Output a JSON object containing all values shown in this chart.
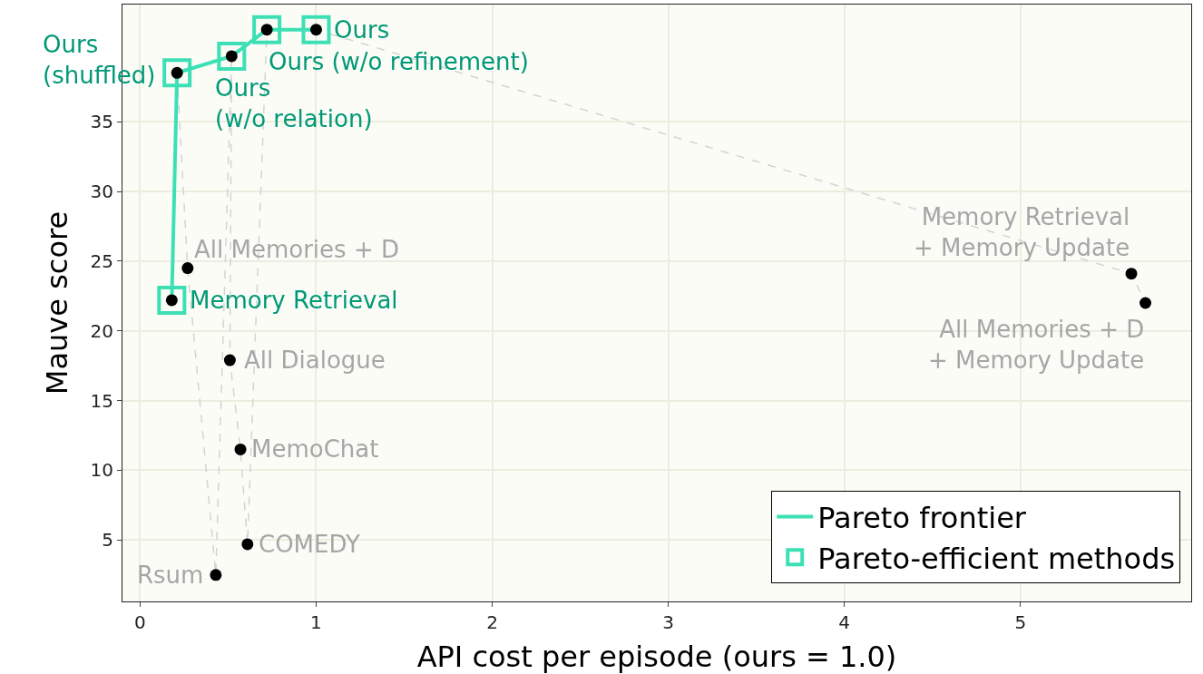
{
  "chart_data": {
    "type": "scatter",
    "xlabel": "API cost per episode (ours = 1.0)",
    "ylabel": "Mauve score",
    "xlim": [
      -0.1,
      5.97
    ],
    "xticks": [
      0,
      1,
      2,
      3,
      4,
      5
    ],
    "ylim": [
      0.6,
      43.4
    ],
    "yticks": [
      5,
      10,
      15,
      20,
      25,
      30,
      35
    ],
    "grid": true,
    "legend": "bottom right",
    "series": [
      {
        "type": "line",
        "line_style": "dashed",
        "color": "#d3d3d3",
        "x": [
          0.21,
          0.27,
          0.43,
          0.52,
          0.51,
          0.57,
          0.61,
          0.72,
          1.0,
          5.63,
          5.71
        ],
        "values": [
          38.5,
          24.5,
          2.5,
          39.7,
          17.9,
          11.5,
          4.7,
          41.6,
          41.6,
          24.1,
          22.0
        ]
      },
      {
        "type": "line",
        "name": "Pareto frontier",
        "color": "#3de0b5",
        "x": [
          0.18,
          0.21,
          0.52,
          0.72,
          1.0
        ],
        "values": [
          22.2,
          38.5,
          39.7,
          41.6,
          41.6
        ]
      },
      {
        "name": "Pareto-efficient methods",
        "marker": "square",
        "color": "#3de0b5",
        "x": [
          0.18,
          0.21,
          0.52,
          0.72,
          1.0
        ],
        "values": [
          22.2,
          38.5,
          39.7,
          41.6,
          41.6
        ]
      },
      {
        "marker": "circle",
        "color": "#000000",
        "x": [
          1.0,
          0.72,
          0.52,
          0.21,
          0.18,
          0.27,
          0.51,
          0.57,
          0.61,
          0.43,
          5.63,
          5.71
        ],
        "values": [
          41.6,
          41.6,
          39.7,
          38.5,
          22.2,
          24.5,
          17.9,
          11.5,
          4.7,
          2.5,
          24.1,
          22.0
        ]
      }
    ],
    "annotations": [
      {
        "text": "Ours",
        "x": 1.0,
        "y": 41.6
      },
      {
        "text": "Ours (w/o refinement)",
        "x": 0.72,
        "y": 41.6
      },
      {
        "text": "Ours\n(w/o relation)",
        "x": 0.52,
        "y": 39.7
      },
      {
        "text": "Ours\n(shuffled)",
        "x": 0.21,
        "y": 38.5
      },
      {
        "text": "Memory Retrieval",
        "x": 0.18,
        "y": 22.2
      },
      {
        "text": "All Memories + D",
        "x": 0.27,
        "y": 24.5
      },
      {
        "text": "All Dialogue",
        "x": 0.51,
        "y": 17.9
      },
      {
        "text": "MemoChat",
        "x": 0.57,
        "y": 11.5
      },
      {
        "text": "COMEDY",
        "x": 0.61,
        "y": 4.7
      },
      {
        "text": "Rsum",
        "x": 0.43,
        "y": 2.5
      },
      {
        "text": "Memory Retrieval\n+ Memory Update",
        "x": 5.63,
        "y": 24.1
      },
      {
        "text": "All Memories + D\n+ Memory Update",
        "x": 5.71,
        "y": 22.0
      }
    ]
  }
}
